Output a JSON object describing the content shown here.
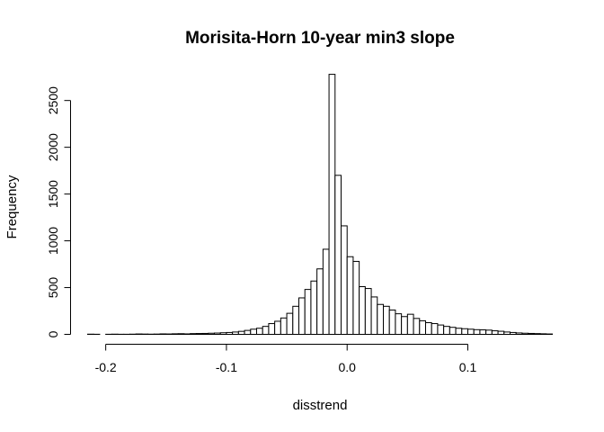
{
  "chart_data": {
    "type": "bar",
    "title": "Morisita-Horn 10-year min3 slope",
    "xlabel": "disstrend",
    "ylabel": "Frequency",
    "x_ticks": [
      -0.2,
      -0.1,
      0.0,
      0.1
    ],
    "x_tick_labels": [
      "-0.2",
      "-0.1",
      "0.0",
      "0.1"
    ],
    "y_ticks": [
      0,
      500,
      1000,
      1500,
      2000,
      2500
    ],
    "y_tick_labels": [
      "0",
      "500",
      "1000",
      "1500",
      "2000",
      "2500"
    ],
    "xlim": [
      -0.215,
      0.17
    ],
    "ylim": [
      0,
      2800
    ],
    "bin_width": 0.005,
    "bin_start": -0.215,
    "values": [
      2,
      1,
      0,
      1,
      2,
      1,
      1,
      2,
      4,
      3,
      2,
      3,
      5,
      4,
      6,
      7,
      5,
      8,
      9,
      10,
      12,
      14,
      17,
      20,
      25,
      32,
      42,
      55,
      65,
      85,
      115,
      140,
      175,
      225,
      300,
      390,
      480,
      570,
      700,
      910,
      2780,
      1700,
      1160,
      830,
      780,
      510,
      490,
      400,
      320,
      300,
      260,
      220,
      190,
      215,
      170,
      145,
      125,
      115,
      100,
      85,
      75,
      65,
      60,
      55,
      50,
      48,
      45,
      38,
      33,
      25,
      20,
      15,
      12,
      10,
      8,
      6,
      4
    ],
    "grid": false,
    "legend": "none"
  }
}
